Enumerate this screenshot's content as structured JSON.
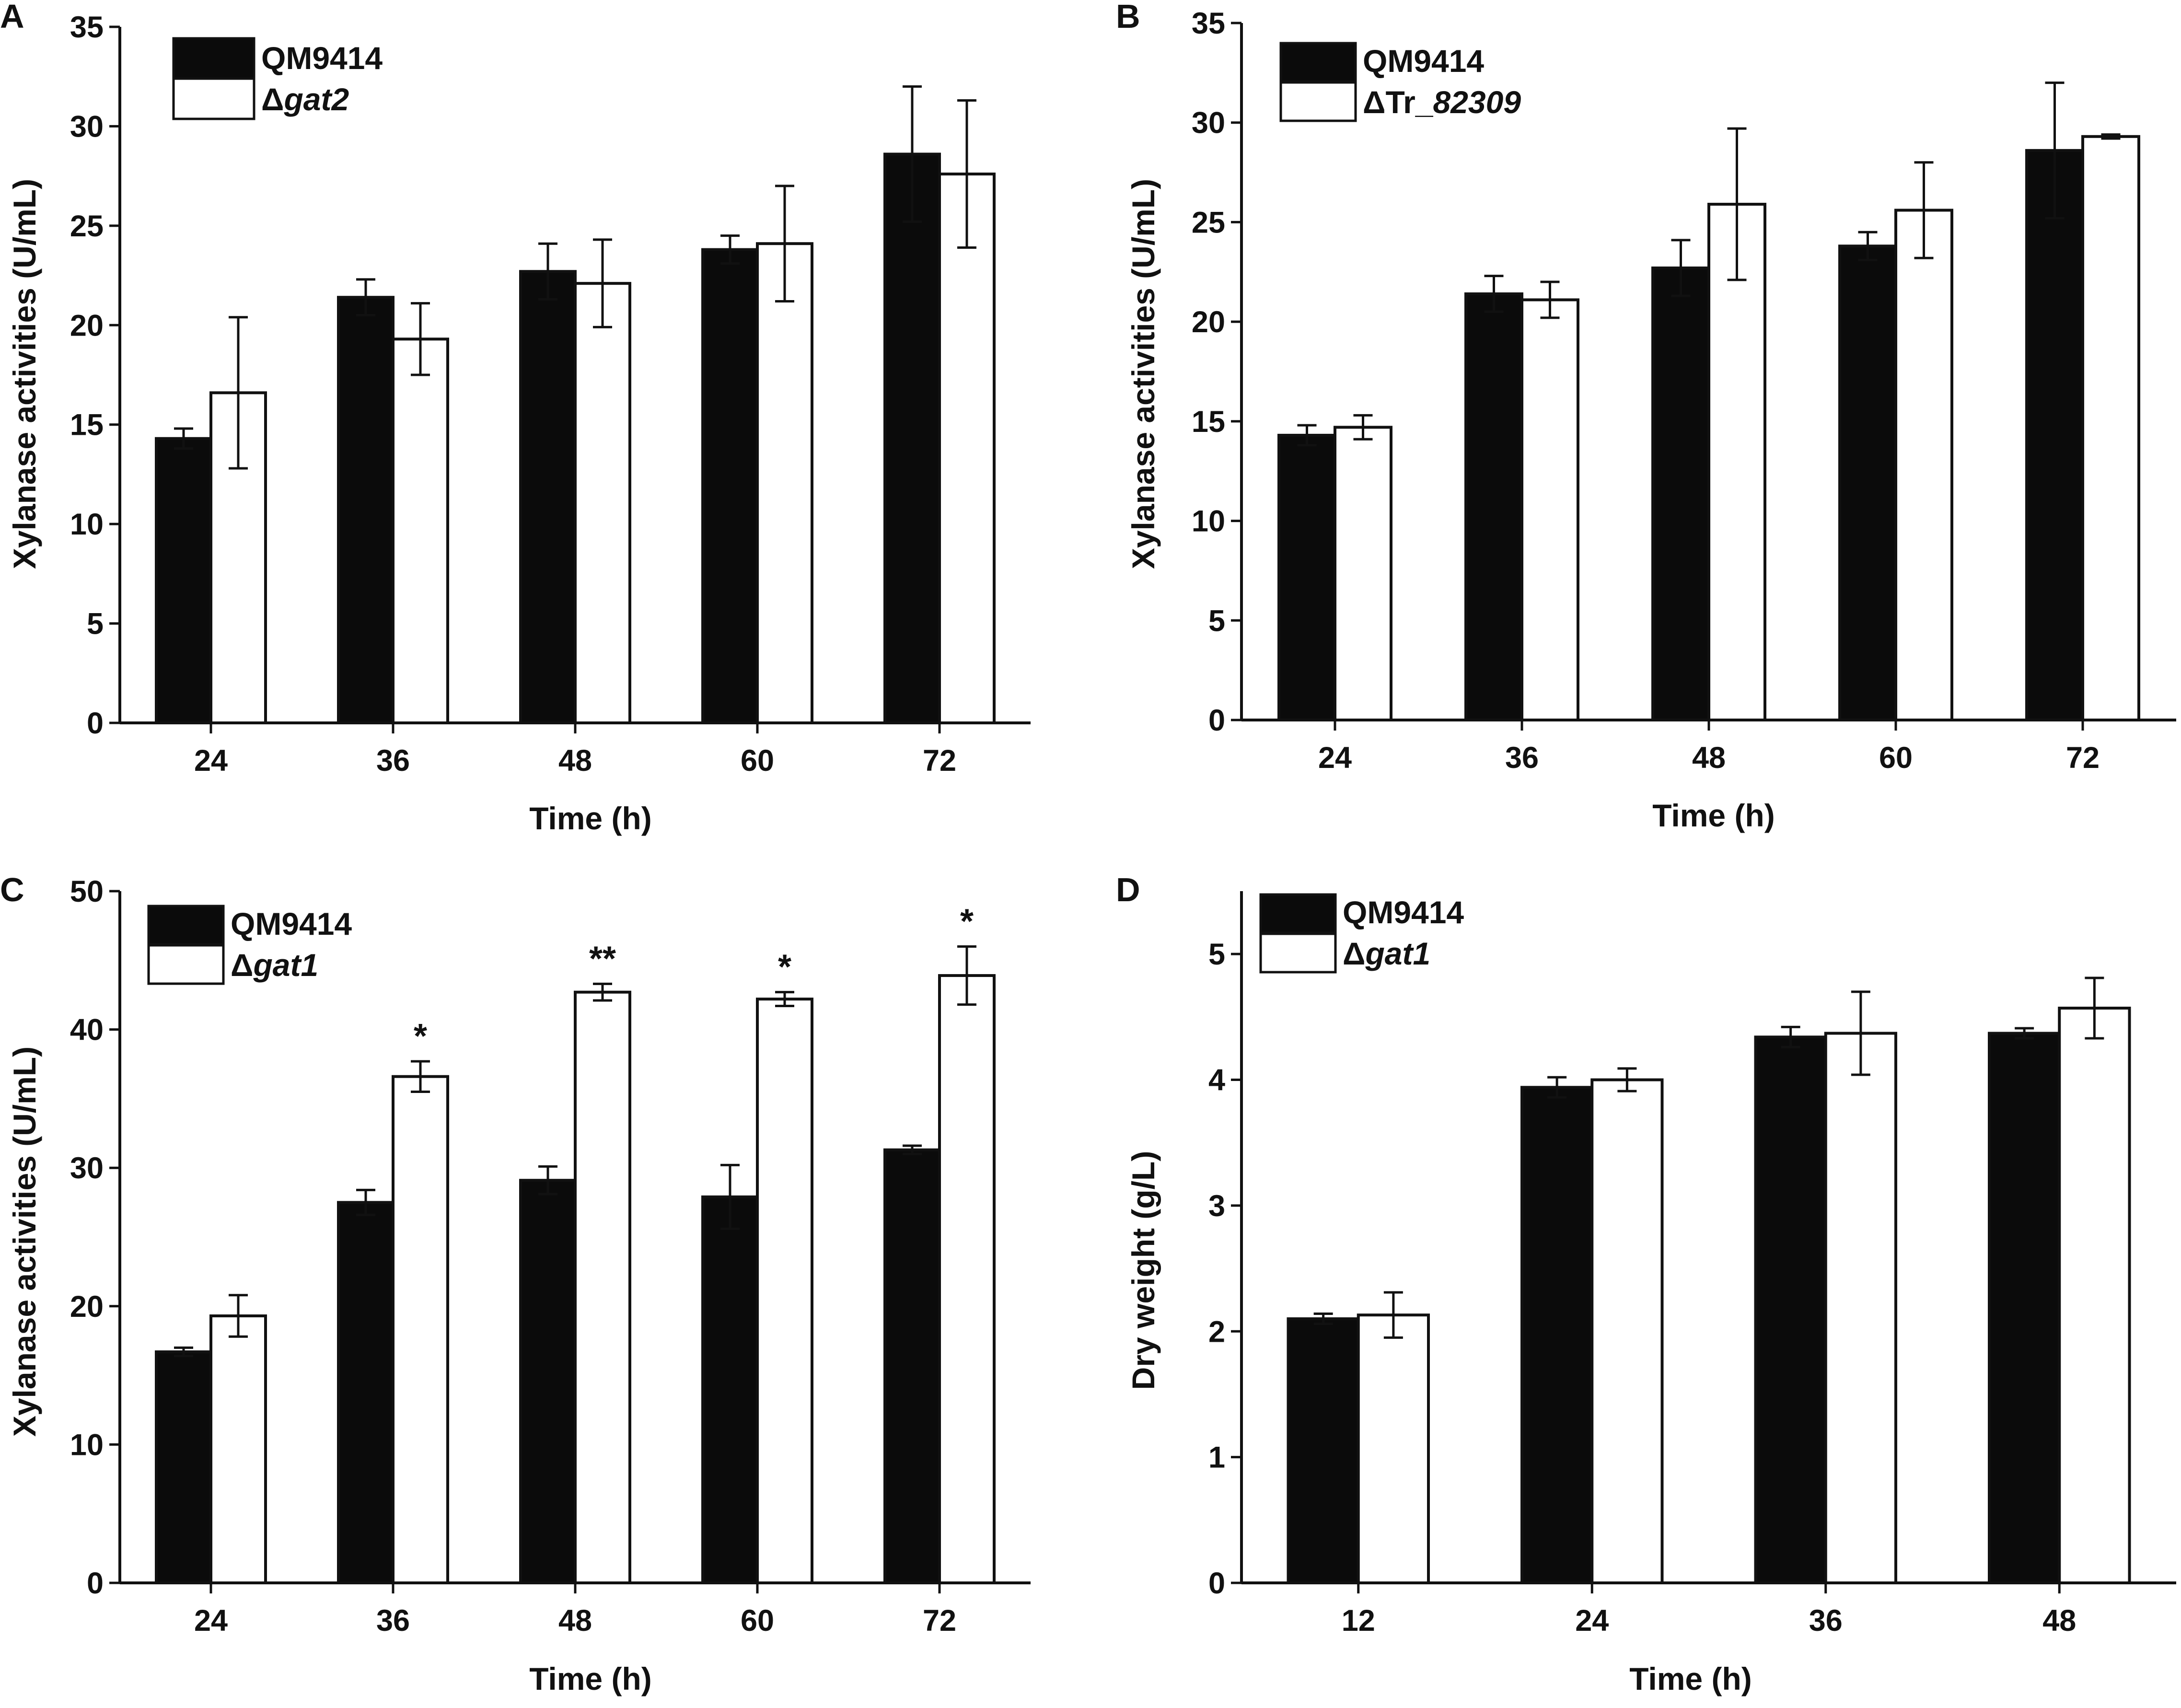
{
  "colors": {
    "series_0": "#0b0b0b",
    "series_1": "#ffffff",
    "stroke": "#111111"
  },
  "chart_data": [
    {
      "panel": "A",
      "type": "bar",
      "categories": [
        "24",
        "36",
        "48",
        "60",
        "72"
      ],
      "series": [
        {
          "name": "QM9414",
          "name_prefix": "",
          "name_italic": "",
          "values": [
            14.3,
            21.4,
            22.7,
            23.8,
            28.6
          ],
          "errors": [
            0.5,
            0.9,
            1.4,
            0.7,
            3.4
          ]
        },
        {
          "name": "Δgat2",
          "name_prefix": "Δ",
          "name_italic": "gat2",
          "values": [
            16.6,
            19.3,
            22.1,
            24.1,
            27.6
          ],
          "errors": [
            3.8,
            1.8,
            2.2,
            2.9,
            3.7
          ]
        }
      ],
      "significance": [
        "",
        "",
        "",
        "",
        ""
      ],
      "xlabel": "Time (h)",
      "ylabel": "Xylanase activities (U/mL)",
      "ylim": [
        0,
        35
      ],
      "yticks": [
        0,
        5,
        10,
        15,
        20,
        25,
        30,
        35
      ],
      "legend": "top-left"
    },
    {
      "panel": "B",
      "type": "bar",
      "categories": [
        "24",
        "36",
        "48",
        "60",
        "72"
      ],
      "series": [
        {
          "name": "QM9414",
          "name_prefix": "",
          "name_italic": "",
          "values": [
            14.3,
            21.4,
            22.7,
            23.8,
            28.6
          ],
          "errors": [
            0.5,
            0.9,
            1.4,
            0.7,
            3.4
          ]
        },
        {
          "name": "ΔTr_82309",
          "name_prefix": "ΔTr_",
          "name_italic": "82309",
          "values": [
            14.7,
            21.1,
            25.9,
            25.6,
            29.3
          ],
          "errors": [
            0.6,
            0.9,
            3.8,
            2.4,
            0.1
          ]
        }
      ],
      "significance": [
        "",
        "",
        "",
        "",
        ""
      ],
      "xlabel": "Time (h)",
      "ylabel": "Xylanase activities (U/mL)",
      "ylim": [
        0,
        35
      ],
      "yticks": [
        0,
        5,
        10,
        15,
        20,
        25,
        30,
        35
      ],
      "legend": "top-left"
    },
    {
      "panel": "C",
      "type": "bar",
      "categories": [
        "24",
        "36",
        "48",
        "60",
        "72"
      ],
      "series": [
        {
          "name": "QM9414",
          "name_prefix": "",
          "name_italic": "",
          "values": [
            16.7,
            27.5,
            29.1,
            27.9,
            31.3
          ],
          "errors": [
            0.3,
            0.9,
            1.0,
            2.3,
            0.3
          ]
        },
        {
          "name": "Δgat1",
          "name_prefix": "Δ",
          "name_italic": "gat1",
          "values": [
            19.3,
            36.6,
            42.7,
            42.2,
            43.9
          ],
          "errors": [
            1.5,
            1.1,
            0.6,
            0.5,
            2.1
          ]
        }
      ],
      "significance": [
        "",
        "*",
        "**",
        "*",
        "*"
      ],
      "xlabel": "Time (h)",
      "ylabel": "Xylanase activities (U/mL)",
      "ylim": [
        0,
        50
      ],
      "yticks": [
        0,
        10,
        20,
        30,
        40,
        50
      ],
      "legend": "top-left"
    },
    {
      "panel": "D",
      "type": "bar",
      "categories": [
        "12",
        "24",
        "36",
        "48"
      ],
      "series": [
        {
          "name": "QM9414",
          "name_prefix": "",
          "name_italic": "",
          "values": [
            2.1,
            3.94,
            4.34,
            4.37
          ],
          "errors": [
            0.04,
            0.08,
            0.08,
            0.04
          ]
        },
        {
          "name": "Δgat1",
          "name_prefix": "Δ",
          "name_italic": "gat1",
          "values": [
            2.13,
            4.0,
            4.37,
            4.57
          ],
          "errors": [
            0.18,
            0.09,
            0.33,
            0.24
          ]
        }
      ],
      "significance": [
        "",
        "",
        "",
        ""
      ],
      "xlabel": "Time (h)",
      "ylabel": "Dry weight (g/L)",
      "ylim": [
        0,
        5.5
      ],
      "yticks": [
        0,
        1,
        2,
        3,
        4,
        5
      ],
      "legend": "top-left"
    }
  ]
}
